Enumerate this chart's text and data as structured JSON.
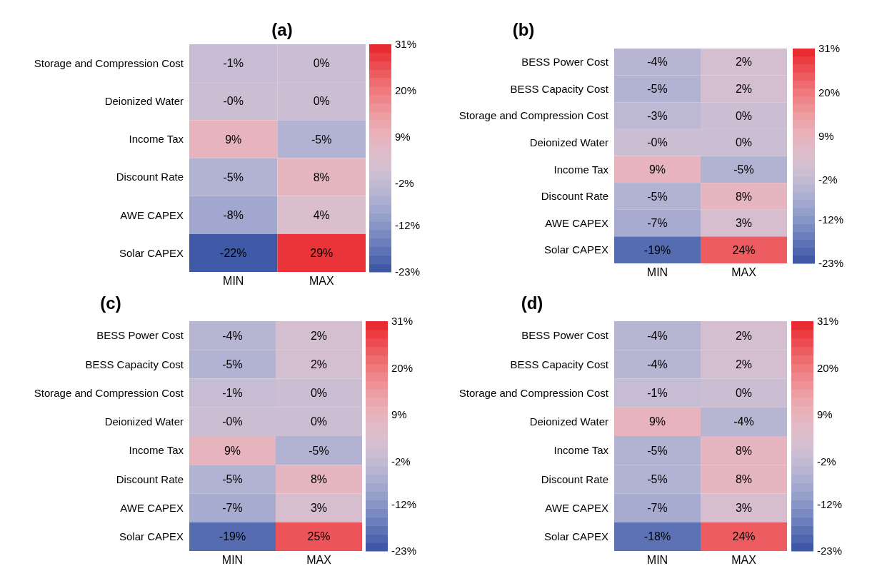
{
  "chart_data": [
    {
      "type": "heatmap",
      "title": "(a)",
      "categories": [
        "MIN",
        "MAX"
      ],
      "y_categories": [
        "Storage and Compression Cost",
        "Deionized Water",
        "Income Tax",
        "Discount Rate",
        "AWE CAPEX",
        "Solar CAPEX"
      ],
      "cells": [
        [
          -1,
          0
        ],
        [
          0,
          0
        ],
        [
          9,
          -5
        ],
        [
          -5,
          8
        ],
        [
          -8,
          4
        ],
        [
          -22,
          29
        ]
      ],
      "cell_labels": [
        [
          "-1%",
          "0%"
        ],
        [
          "-0%",
          "0%"
        ],
        [
          "9%",
          "-5%"
        ],
        [
          "-5%",
          "8%"
        ],
        [
          "-8%",
          "4%"
        ],
        [
          "-22%",
          "29%"
        ]
      ],
      "clim": [
        -23,
        31
      ],
      "cticks": [
        {
          "value": -23,
          "label": "-23%"
        },
        {
          "value": -12,
          "label": "-12%"
        },
        {
          "value": -2,
          "label": "-2%"
        },
        {
          "value": 9,
          "label": "9%"
        },
        {
          "value": 20,
          "label": "20%"
        },
        {
          "value": 31,
          "label": "31%"
        }
      ]
    },
    {
      "type": "heatmap",
      "title": "(b)",
      "categories": [
        "MIN",
        "MAX"
      ],
      "y_categories": [
        "BESS Power Cost",
        "BESS Capacity Cost",
        "Storage and Compression Cost",
        "Deionized Water",
        "Income Tax",
        "Discount Rate",
        "AWE CAPEX",
        "Solar CAPEX"
      ],
      "cells": [
        [
          -4,
          2
        ],
        [
          -5,
          2
        ],
        [
          -3,
          0
        ],
        [
          0,
          0
        ],
        [
          9,
          -5
        ],
        [
          -5,
          8
        ],
        [
          -7,
          3
        ],
        [
          -19,
          24
        ]
      ],
      "cell_labels": [
        [
          "-4%",
          "2%"
        ],
        [
          "-5%",
          "2%"
        ],
        [
          "-3%",
          "0%"
        ],
        [
          "-0%",
          "0%"
        ],
        [
          "9%",
          "-5%"
        ],
        [
          "-5%",
          "8%"
        ],
        [
          "-7%",
          "3%"
        ],
        [
          "-19%",
          "24%"
        ]
      ],
      "clim": [
        -23,
        31
      ],
      "cticks": [
        {
          "value": -23,
          "label": "-23%"
        },
        {
          "value": -12,
          "label": "-12%"
        },
        {
          "value": -2,
          "label": "-2%"
        },
        {
          "value": 9,
          "label": "9%"
        },
        {
          "value": 20,
          "label": "20%"
        },
        {
          "value": 31,
          "label": "31%"
        }
      ]
    },
    {
      "type": "heatmap",
      "title": "(c)",
      "categories": [
        "MIN",
        "MAX"
      ],
      "y_categories": [
        "BESS Power Cost",
        "BESS Capacity Cost",
        "Storage and Compression Cost",
        "Deionized Water",
        "Income Tax",
        "Discount Rate",
        "AWE CAPEX",
        "Solar CAPEX"
      ],
      "cells": [
        [
          -4,
          2
        ],
        [
          -5,
          2
        ],
        [
          -1,
          0
        ],
        [
          0,
          0
        ],
        [
          9,
          -5
        ],
        [
          -5,
          8
        ],
        [
          -7,
          3
        ],
        [
          -19,
          25
        ]
      ],
      "cell_labels": [
        [
          "-4%",
          "2%"
        ],
        [
          "-5%",
          "2%"
        ],
        [
          "-1%",
          "0%"
        ],
        [
          "-0%",
          "0%"
        ],
        [
          "9%",
          "-5%"
        ],
        [
          "-5%",
          "8%"
        ],
        [
          "-7%",
          "3%"
        ],
        [
          "-19%",
          "25%"
        ]
      ],
      "clim": [
        -23,
        31
      ],
      "cticks": [
        {
          "value": -23,
          "label": "-23%"
        },
        {
          "value": -12,
          "label": "-12%"
        },
        {
          "value": -2,
          "label": "-2%"
        },
        {
          "value": 9,
          "label": "9%"
        },
        {
          "value": 20,
          "label": "20%"
        },
        {
          "value": 31,
          "label": "31%"
        }
      ]
    },
    {
      "type": "heatmap",
      "title": "(d)",
      "categories": [
        "MIN",
        "MAX"
      ],
      "y_categories": [
        "BESS Power Cost",
        "BESS Capacity Cost",
        "Storage and Compression Cost",
        "Deionized Water",
        "Income Tax",
        "Discount Rate",
        "AWE CAPEX",
        "Solar CAPEX"
      ],
      "cells": [
        [
          -4,
          2
        ],
        [
          -4,
          2
        ],
        [
          -1,
          0
        ],
        [
          9,
          -4
        ],
        [
          -5,
          8
        ],
        [
          -5,
          8
        ],
        [
          -7,
          3
        ],
        [
          -18,
          24
        ]
      ],
      "cell_labels": [
        [
          "-4%",
          "2%"
        ],
        [
          "-4%",
          "2%"
        ],
        [
          "-1%",
          "0%"
        ],
        [
          "9%",
          "-4%"
        ],
        [
          "-5%",
          "8%"
        ],
        [
          "-5%",
          "8%"
        ],
        [
          "-7%",
          "3%"
        ],
        [
          "-18%",
          "24%"
        ]
      ],
      "clim": [
        -23,
        31
      ],
      "cticks": [
        {
          "value": -23,
          "label": "-23%"
        },
        {
          "value": -12,
          "label": "-12%"
        },
        {
          "value": -2,
          "label": "-2%"
        },
        {
          "value": 9,
          "label": "9%"
        },
        {
          "value": 20,
          "label": "20%"
        },
        {
          "value": 31,
          "label": "31%"
        }
      ]
    }
  ]
}
